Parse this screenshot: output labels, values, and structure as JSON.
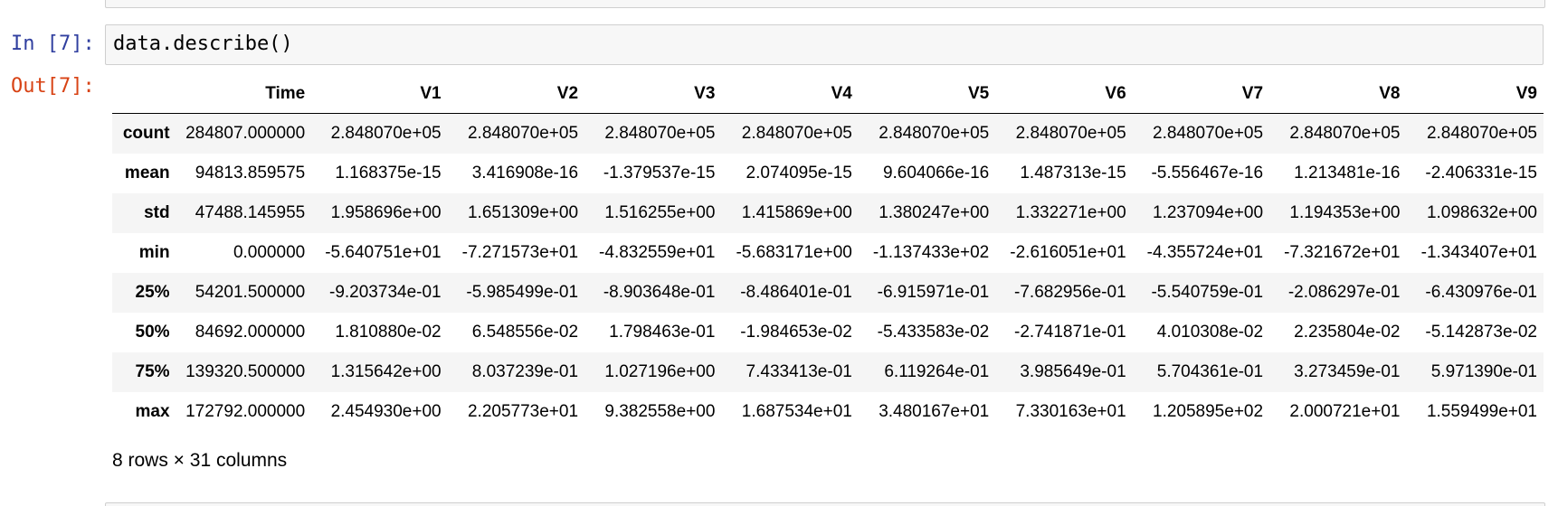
{
  "cells": {
    "input_prompt": "In [7]:",
    "code": "data.describe()",
    "output_prompt": "Out[7]:"
  },
  "table": {
    "columns": [
      "Time",
      "V1",
      "V2",
      "V3",
      "V4",
      "V5",
      "V6",
      "V7",
      "V8",
      "V9"
    ],
    "rows": [
      {
        "index": "count",
        "values": [
          "284807.000000",
          "2.848070e+05",
          "2.848070e+05",
          "2.848070e+05",
          "2.848070e+05",
          "2.848070e+05",
          "2.848070e+05",
          "2.848070e+05",
          "2.848070e+05",
          "2.848070e+05"
        ]
      },
      {
        "index": "mean",
        "values": [
          "94813.859575",
          "1.168375e-15",
          "3.416908e-16",
          "-1.379537e-15",
          "2.074095e-15",
          "9.604066e-16",
          "1.487313e-15",
          "-5.556467e-16",
          "1.213481e-16",
          "-2.406331e-15"
        ]
      },
      {
        "index": "std",
        "values": [
          "47488.145955",
          "1.958696e+00",
          "1.651309e+00",
          "1.516255e+00",
          "1.415869e+00",
          "1.380247e+00",
          "1.332271e+00",
          "1.237094e+00",
          "1.194353e+00",
          "1.098632e+00"
        ]
      },
      {
        "index": "min",
        "values": [
          "0.000000",
          "-5.640751e+01",
          "-7.271573e+01",
          "-4.832559e+01",
          "-5.683171e+00",
          "-1.137433e+02",
          "-2.616051e+01",
          "-4.355724e+01",
          "-7.321672e+01",
          "-1.343407e+01"
        ]
      },
      {
        "index": "25%",
        "values": [
          "54201.500000",
          "-9.203734e-01",
          "-5.985499e-01",
          "-8.903648e-01",
          "-8.486401e-01",
          "-6.915971e-01",
          "-7.682956e-01",
          "-5.540759e-01",
          "-2.086297e-01",
          "-6.430976e-01"
        ]
      },
      {
        "index": "50%",
        "values": [
          "84692.000000",
          "1.810880e-02",
          "6.548556e-02",
          "1.798463e-01",
          "-1.984653e-02",
          "-5.433583e-02",
          "-2.741871e-01",
          "4.010308e-02",
          "2.235804e-02",
          "-5.142873e-02"
        ]
      },
      {
        "index": "75%",
        "values": [
          "139320.500000",
          "1.315642e+00",
          "8.037239e-01",
          "1.027196e+00",
          "7.433413e-01",
          "6.119264e-01",
          "3.985649e-01",
          "5.704361e-01",
          "3.273459e-01",
          "5.971390e-01"
        ]
      },
      {
        "index": "max",
        "values": [
          "172792.000000",
          "2.454930e+00",
          "2.205773e+01",
          "9.382558e+00",
          "1.687534e+01",
          "3.480167e+01",
          "7.330163e+01",
          "1.205895e+02",
          "2.000721e+01",
          "1.559499e+01"
        ]
      }
    ],
    "shape_text": "8 rows × 31 columns"
  }
}
